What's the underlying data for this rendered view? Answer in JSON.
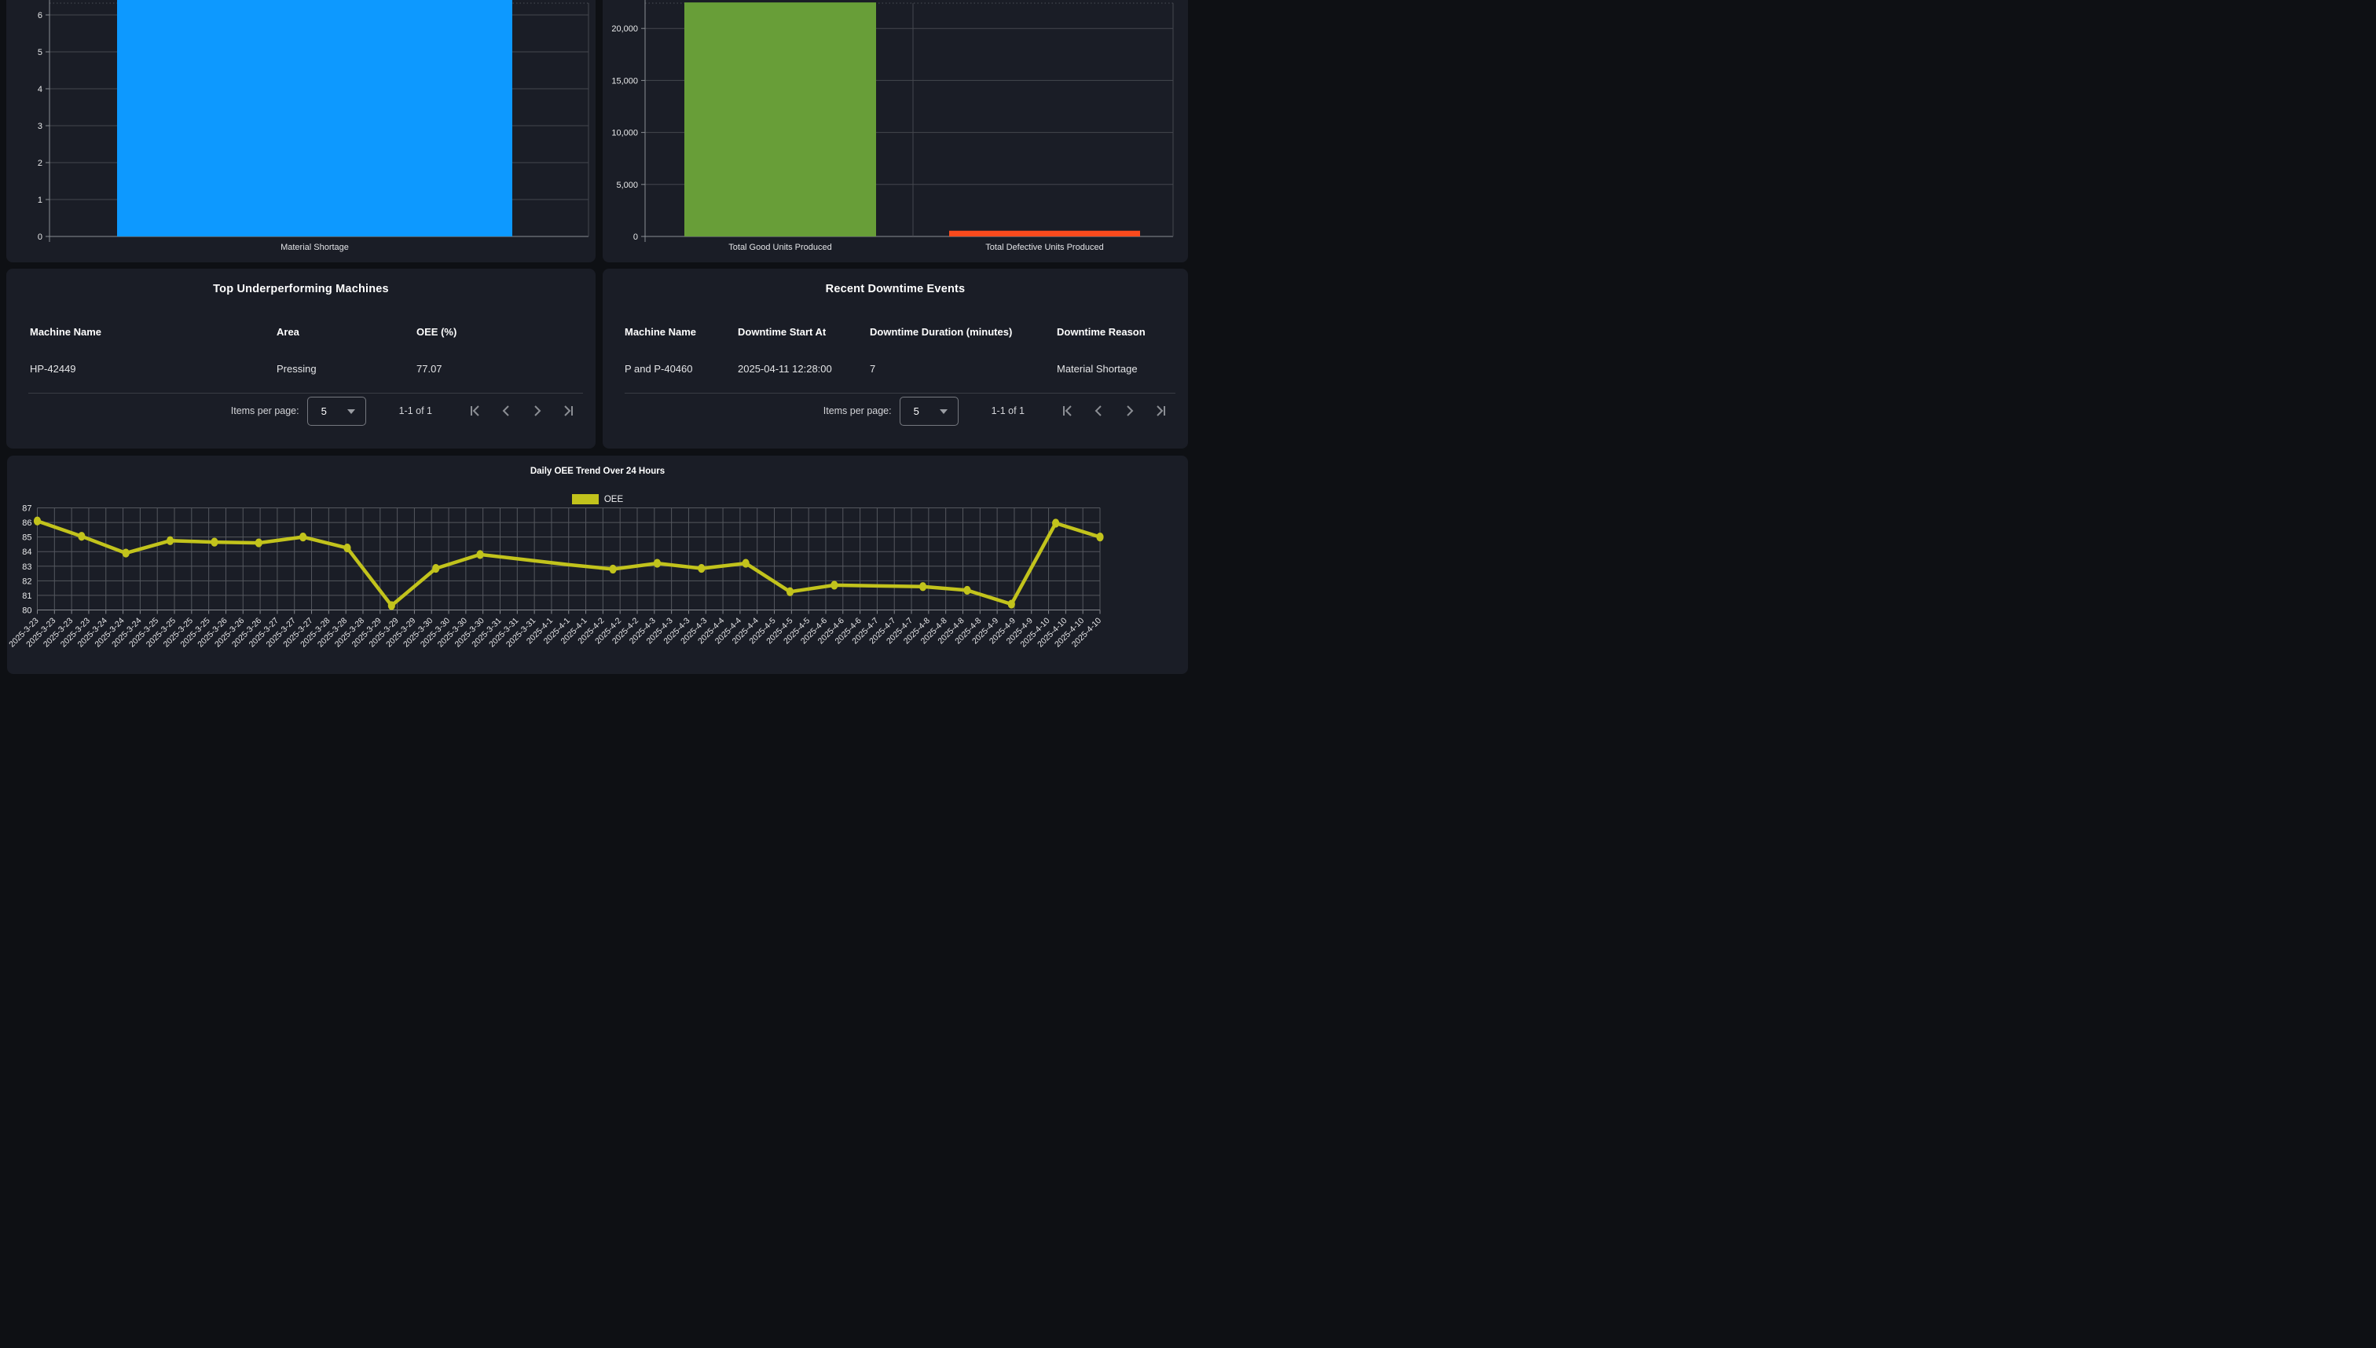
{
  "icons": {
    "first_page": "|<",
    "previous_page": "<",
    "next_page": ">",
    "last_page": ">|",
    "caret_down": "▼"
  },
  "colors": {
    "panel_background": "#1a1d26",
    "page_background": "#0e1014",
    "gridline": "#44474e",
    "axis_line": "#8a8e94",
    "bar_blue": "#0d99ff",
    "bar_green": "#689e38",
    "bar_red": "#fa4a1d",
    "line_yellow": "#c2c31c"
  },
  "tables": {
    "underperforming": {
      "title": "Top Underperforming Machines",
      "columns": [
        "Machine Name",
        "Area",
        "OEE (%)"
      ],
      "rows": [
        [
          "HP-42449",
          "Pressing",
          "77.07"
        ]
      ],
      "pagination": {
        "items_per_page_label": "Items per page:",
        "page_size": "5",
        "range": "1-1 of 1"
      }
    },
    "downtime": {
      "title": "Recent Downtime Events",
      "columns": [
        "Machine Name",
        "Downtime Start At",
        "Downtime Duration (minutes)",
        "Downtime Reason"
      ],
      "rows": [
        [
          "P and P-40460",
          "2025-04-11 12:28:00",
          "7",
          "Material Shortage"
        ]
      ],
      "pagination": {
        "items_per_page_label": "Items per page:",
        "page_size": "5",
        "range": "1-1 of 1"
      }
    }
  },
  "chart_data": [
    {
      "type": "bar",
      "name": "downtime-count-by-reason",
      "categories": [
        "Material Shortage"
      ],
      "values": [
        7
      ],
      "clipped_at_top": [
        true
      ],
      "colors": [
        "#0d99ff"
      ],
      "ylim": [
        0,
        6.45
      ],
      "y_ticks": [
        {
          "label": "0",
          "value": 0
        },
        {
          "label": "1",
          "value": 1
        },
        {
          "label": "2",
          "value": 2
        },
        {
          "label": "3",
          "value": 3
        },
        {
          "label": "4",
          "value": 4
        },
        {
          "label": "5",
          "value": 5
        },
        {
          "label": "6",
          "value": 6
        }
      ],
      "grid": true
    },
    {
      "type": "bar",
      "name": "good-vs-defective-units",
      "categories": [
        "Total Good Units Produced",
        "Total Defective Units Produced"
      ],
      "values": [
        22500,
        550
      ],
      "clipped_at_top": [
        true,
        false
      ],
      "colors": [
        "#689e38",
        "#fa4a1d"
      ],
      "ylim": [
        0,
        22750
      ],
      "y_ticks": [
        {
          "label": "0",
          "value": 0
        },
        {
          "label": "5,000",
          "value": 5000
        },
        {
          "label": "10,000",
          "value": 10000
        },
        {
          "label": "15,000",
          "value": 15000
        },
        {
          "label": "20,000",
          "value": 20000
        }
      ],
      "grid": true
    },
    {
      "type": "line",
      "name": "daily-oee-trend",
      "title": "Daily OEE Trend Over 24 Hours",
      "legend": "OEE",
      "color": "#c2c31c",
      "ylim": [
        80,
        87
      ],
      "y_ticks": [
        80,
        81,
        82,
        83,
        84,
        85,
        86,
        87
      ],
      "grid": true,
      "x_labels": [
        "2025-3-23",
        "2025-3-23",
        "2025-3-23",
        "2025-3-23",
        "2025-3-24",
        "2025-3-24",
        "2025-3-24",
        "2025-3-25",
        "2025-3-25",
        "2025-3-25",
        "2025-3-25",
        "2025-3-26",
        "2025-3-26",
        "2025-3-26",
        "2025-3-27",
        "2025-3-27",
        "2025-3-27",
        "2025-3-28",
        "2025-3-28",
        "2025-3-28",
        "2025-3-29",
        "2025-3-29",
        "2025-3-29",
        "2025-3-30",
        "2025-3-30",
        "2025-3-30",
        "2025-3-30",
        "2025-3-31",
        "2025-3-31",
        "2025-3-31",
        "2025-4-1",
        "2025-4-1",
        "2025-4-1",
        "2025-4-2",
        "2025-4-2",
        "2025-4-2",
        "2025-4-3",
        "2025-4-3",
        "2025-4-3",
        "2025-4-3",
        "2025-4-4",
        "2025-4-4",
        "2025-4-4",
        "2025-4-5",
        "2025-4-5",
        "2025-4-5",
        "2025-4-6",
        "2025-4-6",
        "2025-4-6",
        "2025-4-7",
        "2025-4-7",
        "2025-4-7",
        "2025-4-8",
        "2025-4-8",
        "2025-4-8",
        "2025-4-8",
        "2025-4-9",
        "2025-4-9",
        "2025-4-9",
        "2025-4-10",
        "2025-4-10",
        "2025-4-10",
        "2025-4-10"
      ],
      "points": [
        {
          "v": 86.1,
          "m": true
        },
        {
          "v": 85.05,
          "m": true
        },
        {
          "v": 83.9,
          "m": true
        },
        {
          "v": 84.75,
          "m": true
        },
        {
          "v": 84.65,
          "m": true
        },
        {
          "v": 84.6,
          "m": true
        },
        {
          "v": 85.0,
          "m": true
        },
        {
          "v": 84.25,
          "m": true
        },
        {
          "v": 80.3,
          "m": true
        },
        {
          "v": 82.85,
          "m": true
        },
        {
          "v": 83.8,
          "m": true
        },
        {
          "v": 83.45,
          "m": false
        },
        {
          "v": 83.1,
          "m": false
        },
        {
          "v": 82.8,
          "m": true
        },
        {
          "v": 83.2,
          "m": true
        },
        {
          "v": 82.85,
          "m": true
        },
        {
          "v": 83.2,
          "m": true
        },
        {
          "v": 81.25,
          "m": true
        },
        {
          "v": 81.7,
          "m": true
        },
        {
          "v": 81.65,
          "m": false
        },
        {
          "v": 81.6,
          "m": true
        },
        {
          "v": 81.35,
          "m": true
        },
        {
          "v": 80.4,
          "m": true
        },
        {
          "v": 85.95,
          "m": true
        },
        {
          "v": 85.0,
          "m": true
        }
      ]
    }
  ]
}
